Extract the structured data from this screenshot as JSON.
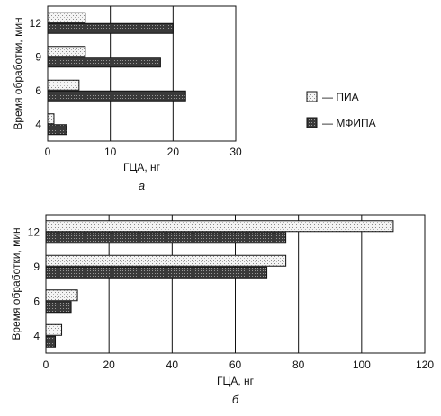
{
  "chart_data": [
    {
      "type": "bar",
      "orientation": "horizontal",
      "panel_label": "а",
      "categories": [
        "4",
        "6",
        "9",
        "12"
      ],
      "series": [
        {
          "name": "— ПИА",
          "values": [
            1,
            5,
            6,
            6
          ],
          "color": "#f2f2f2",
          "pattern": "light-stipple"
        },
        {
          "name": "— МФИПА",
          "values": [
            3,
            22,
            18,
            20
          ],
          "color": "#444444",
          "pattern": "dark-stipple"
        }
      ],
      "xlabel": "ГЦА, нг",
      "ylabel": "Время обработки, мин",
      "xlim": [
        0,
        30
      ],
      "xticks": [
        "0",
        "10",
        "20",
        "30"
      ],
      "grid": "vertical",
      "legend_position": "right"
    },
    {
      "type": "bar",
      "orientation": "horizontal",
      "panel_label": "б",
      "categories": [
        "4",
        "6",
        "9",
        "12"
      ],
      "series": [
        {
          "name": "— ПИА",
          "values": [
            5,
            10,
            76,
            110
          ],
          "color": "#f2f2f2",
          "pattern": "light-stipple"
        },
        {
          "name": "— МФИПА",
          "values": [
            3,
            8,
            70,
            76
          ],
          "color": "#444444",
          "pattern": "dark-stipple"
        }
      ],
      "xlabel": "ГЦА, нг",
      "ylabel": "Время обработки, мин",
      "xlim": [
        0,
        120
      ],
      "xticks": [
        "0",
        "20",
        "40",
        "60",
        "80",
        "100",
        "120"
      ],
      "grid": "vertical"
    }
  ]
}
